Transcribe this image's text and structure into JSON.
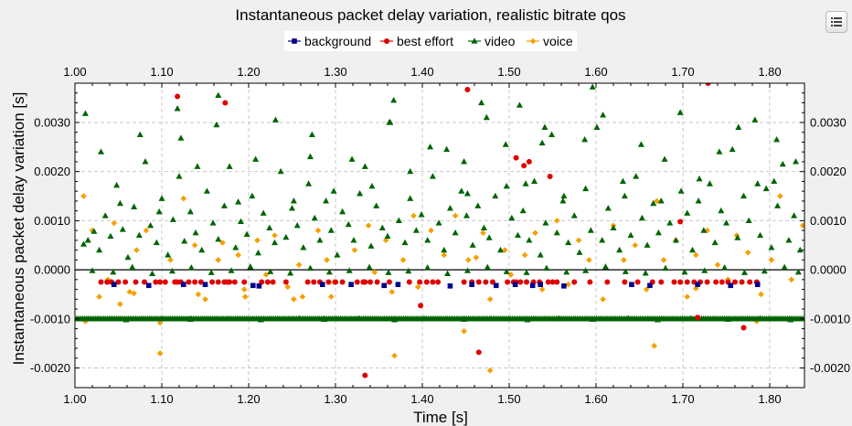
{
  "chart_data": {
    "type": "scatter",
    "title": "Instantaneous packet delay variation, realistic bitrate qos",
    "xlabel": "Time [s]",
    "ylabel": "Instantaneous packet delay variation [s]",
    "xlim": [
      1.0,
      1.84
    ],
    "ylim": [
      -0.0024,
      0.0038
    ],
    "x_ticks": [
      "1.00",
      "1.10",
      "1.20",
      "1.30",
      "1.40",
      "1.50",
      "1.60",
      "1.70",
      "1.80"
    ],
    "y_ticks_left": [
      "0.0030",
      "0.0020",
      "0.0010",
      "0.0000",
      "-0.0010",
      "-0.0020"
    ],
    "y_ticks_right": [
      "0.0030",
      "0.0020",
      "0.0010",
      "0.0000",
      "-0.0010",
      "-0.0020"
    ],
    "grid": true,
    "zero_line": true,
    "legend_position": "top-center",
    "series": [
      {
        "name": "background",
        "marker": "square",
        "color": "#00008b",
        "x": [
          1.045,
          1.085,
          1.125,
          1.15,
          1.205,
          1.212,
          1.285,
          1.318,
          1.356,
          1.372,
          1.432,
          1.457,
          1.485,
          1.507,
          1.527,
          1.536,
          1.563,
          1.641,
          1.662,
          1.717,
          1.755,
          1.786
        ],
        "y": [
          -0.0003,
          -0.00032,
          -0.0003,
          -0.0003,
          -0.00032,
          -0.00033,
          -0.0003,
          -0.0003,
          -0.00032,
          -0.0003,
          -0.00033,
          -0.0003,
          -0.00032,
          -0.0003,
          -0.00032,
          -0.0003,
          -0.00033,
          -0.0003,
          -0.00032,
          -0.0003,
          -0.00032,
          -0.0003
        ]
      },
      {
        "name": "best effort",
        "marker": "circle",
        "color": "#e00000",
        "x": [
          1.03,
          1.037,
          1.042,
          1.05,
          1.058,
          1.07,
          1.08,
          1.093,
          1.098,
          1.104,
          1.115,
          1.118,
          1.122,
          1.131,
          1.138,
          1.145,
          1.158,
          1.165,
          1.172,
          1.175,
          1.178,
          1.184,
          1.195,
          1.215,
          1.222,
          1.228,
          1.243,
          1.268,
          1.275,
          1.282,
          1.292,
          1.3,
          1.308,
          1.325,
          1.332,
          1.334,
          1.34,
          1.348,
          1.362,
          1.385,
          1.397,
          1.405,
          1.412,
          1.418,
          1.448,
          1.457,
          1.465,
          1.473,
          1.481,
          1.498,
          1.505,
          1.508,
          1.513,
          1.52,
          1.528,
          1.535,
          1.545,
          1.55,
          1.555,
          1.575,
          1.593,
          1.613,
          1.633,
          1.648,
          1.665,
          1.675,
          1.69,
          1.697,
          1.705,
          1.713,
          1.72,
          1.728,
          1.738,
          1.745,
          1.752,
          1.76,
          1.768,
          1.777,
          1.785,
          1.452,
          1.118,
          1.173,
          1.508,
          1.517,
          1.547,
          1.697,
          1.729,
          1.334,
          1.465,
          1.398,
          1.717,
          1.77,
          1.523
        ],
        "y": [
          -0.00025,
          -0.00025,
          -0.00025,
          -0.00025,
          -0.00025,
          -0.00025,
          -0.00025,
          -0.00025,
          -0.00025,
          -0.00025,
          -0.00025,
          -0.00025,
          -0.00025,
          -0.00025,
          -0.00025,
          -0.00025,
          -0.00025,
          -0.00025,
          -0.00025,
          -0.00025,
          -0.00025,
          -0.00025,
          -0.00025,
          -0.00025,
          -0.00025,
          -0.00025,
          -0.00025,
          -0.00025,
          -0.00025,
          -0.00025,
          -0.00025,
          -0.00025,
          -0.00025,
          -0.00025,
          -0.00025,
          -0.00025,
          -0.00025,
          -0.00025,
          -0.00025,
          -0.00025,
          -0.00025,
          -0.00025,
          -0.00025,
          -0.00025,
          -0.00025,
          -0.00025,
          -0.00025,
          -0.00025,
          -0.00025,
          -0.00025,
          -0.00025,
          -0.00025,
          -0.00025,
          -0.00025,
          -0.00025,
          -0.00025,
          -0.00025,
          -0.00025,
          -0.00025,
          -0.00025,
          -0.00025,
          -0.00025,
          -0.00025,
          -0.00025,
          -0.00025,
          -0.00025,
          -0.00025,
          -0.00025,
          -0.00025,
          -0.00025,
          -0.00025,
          -0.00025,
          -0.00025,
          -0.00025,
          -0.00025,
          -0.00025,
          -0.00025,
          -0.00025,
          -0.00025,
          0.00367,
          0.00353,
          0.0034,
          0.00228,
          0.00212,
          0.0019,
          0.00098,
          0.0038,
          -0.00215,
          -0.00168,
          -0.00073,
          -0.00097,
          -0.00118,
          0.0022
        ]
      },
      {
        "name": "video",
        "marker": "triangle",
        "color": "#006400",
        "x": [
          1.01,
          1.015,
          1.022,
          1.028,
          1.035,
          1.041,
          1.048,
          1.055,
          1.061,
          1.068,
          1.074,
          1.081,
          1.087,
          1.094,
          1.1,
          1.107,
          1.113,
          1.12,
          1.126,
          1.133,
          1.139,
          1.146,
          1.152,
          1.159,
          1.165,
          1.172,
          1.178,
          1.185,
          1.191,
          1.198,
          1.204,
          1.211,
          1.217,
          1.224,
          1.23,
          1.237,
          1.243,
          1.25,
          1.256,
          1.263,
          1.269,
          1.276,
          1.282,
          1.289,
          1.295,
          1.302,
          1.308,
          1.315,
          1.321,
          1.328,
          1.334,
          1.341,
          1.347,
          1.354,
          1.36,
          1.367,
          1.373,
          1.38,
          1.386,
          1.393,
          1.399,
          1.406,
          1.412,
          1.419,
          1.425,
          1.432,
          1.438,
          1.445,
          1.451,
          1.458,
          1.464,
          1.471,
          1.477,
          1.484,
          1.49,
          1.497,
          1.503,
          1.51,
          1.516,
          1.523,
          1.529,
          1.536,
          1.542,
          1.549,
          1.555,
          1.562,
          1.568,
          1.575,
          1.581,
          1.588,
          1.594,
          1.601,
          1.607,
          1.614,
          1.62,
          1.627,
          1.633,
          1.64,
          1.646,
          1.653,
          1.659,
          1.666,
          1.672,
          1.679,
          1.685,
          1.692,
          1.698,
          1.705,
          1.711,
          1.718,
          1.724,
          1.731,
          1.737,
          1.744,
          1.75,
          1.757,
          1.763,
          1.77,
          1.776,
          1.783,
          1.789,
          1.796,
          1.802,
          1.809,
          1.815,
          1.822,
          1.828,
          1.835,
          1.012,
          1.03,
          1.052,
          1.075,
          1.097,
          1.118,
          1.141,
          1.163,
          1.188,
          1.208,
          1.231,
          1.252,
          1.273,
          1.298,
          1.319,
          1.342,
          1.363,
          1.386,
          1.409,
          1.428,
          1.452,
          1.474,
          1.496,
          1.519,
          1.541,
          1.563,
          1.587,
          1.608,
          1.631,
          1.652,
          1.675,
          1.697,
          1.719,
          1.742,
          1.764,
          1.786,
          1.808,
          1.83,
          1.02,
          1.044,
          1.066,
          1.089,
          1.112,
          1.134,
          1.157,
          1.18,
          1.202,
          1.225,
          1.248,
          1.271,
          1.293,
          1.316,
          1.339,
          1.361,
          1.384,
          1.406,
          1.429,
          1.452,
          1.475,
          1.497,
          1.52,
          1.543,
          1.566,
          1.588,
          1.611,
          1.634,
          1.657,
          1.68,
          1.702,
          1.725,
          1.748,
          1.771,
          1.794,
          1.817,
          1.833,
          1.026,
          1.059,
          1.101,
          1.133,
          1.176,
          1.214,
          1.258,
          1.287,
          1.327,
          1.368,
          1.402,
          1.448,
          1.479,
          1.521,
          1.558,
          1.596,
          1.637,
          1.671,
          1.709,
          1.752,
          1.789,
          1.824,
          1.596,
          1.512,
          1.362,
          1.468,
          1.122,
          1.805,
          1.538,
          1.448,
          1.271,
          1.165
        ],
        "y": [
          0.00052,
          0.0006,
          0.00078,
          0.0004,
          0.0011,
          0.00068,
          0.00172,
          0.00082,
          0.00025,
          0.00128,
          0.0007,
          0.0022,
          0.0009,
          0.00055,
          0.00145,
          0.0003,
          0.00102,
          0.0019,
          0.00058,
          0.00118,
          0.00075,
          0.0004,
          0.0016,
          0.00095,
          0.00062,
          0.0013,
          0.0021,
          0.00045,
          0.00098,
          0.00072,
          0.0015,
          0.00034,
          0.00115,
          0.00085,
          0.00055,
          0.002,
          0.00066,
          0.00125,
          0.0009,
          0.00045,
          0.00175,
          0.00105,
          0.0006,
          0.0014,
          0.0008,
          0.0003,
          0.00118,
          0.00092,
          0.0006,
          0.00155,
          0.0021,
          0.00048,
          0.0013,
          0.00085,
          0.00068,
          0.00345,
          0.001,
          0.00055,
          0.00145,
          0.0008,
          0.00112,
          0.0006,
          0.0019,
          0.00095,
          0.0004,
          0.00125,
          0.00075,
          0.0016,
          0.0011,
          0.0005,
          0.0013,
          0.00085,
          0.00065,
          0.0015,
          0.0004,
          0.0017,
          0.00105,
          0.0007,
          0.0012,
          0.0006,
          0.0018,
          0.0003,
          0.00095,
          0.00275,
          0.00075,
          0.0014,
          0.00055,
          0.0011,
          0.00035,
          0.00165,
          0.0008,
          0.0029,
          0.0006,
          0.00125,
          0.00085,
          0.0004,
          0.0015,
          0.0007,
          0.0019,
          0.00105,
          0.0005,
          0.00135,
          0.00075,
          0.00225,
          0.00095,
          0.0006,
          0.0016,
          0.00115,
          0.0004,
          0.0014,
          0.0008,
          0.00175,
          0.00055,
          0.0012,
          0.00095,
          0.00245,
          0.00065,
          0.0015,
          0.001,
          0.00305,
          0.0007,
          0.00165,
          0.00045,
          0.0013,
          0.00215,
          0.0006,
          0.0011,
          0.0004,
          0.00318,
          0.0024,
          0.00135,
          0.00275,
          0.00118,
          0.00328,
          0.0021,
          0.00295,
          0.00138,
          0.00225,
          0.00305,
          0.0014,
          0.00275,
          0.0016,
          0.00225,
          0.0017,
          0.003,
          0.002,
          0.0025,
          0.00245,
          0.00155,
          0.0031,
          0.00255,
          0.00175,
          0.0029,
          0.0015,
          0.00265,
          0.00315,
          0.0018,
          0.00255,
          0.0014,
          0.0032,
          0.00185,
          0.0024,
          0.0029,
          0.00175,
          0.00265,
          0.0022,
          -2e-05,
          -5e-05,
          5e-05,
          -8e-05,
          -3e-05,
          4e-05,
          -6e-05,
          -2e-05,
          6e-05,
          -4e-05,
          -7e-05,
          3e-05,
          -5e-05,
          -2e-05,
          5e-05,
          -6e-05,
          -3e-05,
          4e-05,
          -8e-05,
          -2e-05,
          5e-05,
          -4e-05,
          -6e-05,
          3e-05,
          -5e-05,
          -2e-05,
          6e-05,
          -4e-05,
          -7e-05,
          3e-05,
          -5e-05,
          -2e-05,
          4e-05,
          -6e-05,
          -3e-05,
          5e-05,
          -5e-05,
          -0.001,
          -0.00102,
          -0.001,
          -0.00101,
          -0.001,
          -0.00102,
          -0.001,
          -0.00101,
          -0.001,
          -0.00102,
          -0.001,
          -0.00101,
          -0.001,
          -0.00102,
          -0.001,
          -0.00101,
          -0.001,
          -0.00102,
          -0.001,
          -0.00101,
          -0.001,
          -0.00102,
          0.00372,
          0.00335,
          0.003,
          0.0034,
          0.00268,
          0.0018,
          0.00258,
          0.0022,
          0.0023,
          0.00355
        ]
      },
      {
        "name": "voice",
        "marker": "diamond",
        "color": "#f5a000",
        "x": [
          1.01,
          1.02,
          1.028,
          1.038,
          1.045,
          1.052,
          1.063,
          1.071,
          1.082,
          1.098,
          1.11,
          1.125,
          1.138,
          1.15,
          1.165,
          1.17,
          1.188,
          1.195,
          1.21,
          1.22,
          1.23,
          1.245,
          1.258,
          1.262,
          1.28,
          1.29,
          1.298,
          1.322,
          1.338,
          1.345,
          1.358,
          1.365,
          1.378,
          1.39,
          1.395,
          1.41,
          1.425,
          1.438,
          1.453,
          1.462,
          1.47,
          1.478,
          1.495,
          1.502,
          1.518,
          1.53,
          1.538,
          1.555,
          1.568,
          1.58,
          1.592,
          1.608,
          1.62,
          1.632,
          1.645,
          1.658,
          1.67,
          1.678,
          1.692,
          1.705,
          1.715,
          1.728,
          1.74,
          1.752,
          1.762,
          1.775,
          1.79,
          1.802,
          1.812,
          1.825,
          1.838,
          1.012,
          1.068,
          1.098,
          1.142,
          1.196,
          1.252,
          1.295,
          1.368,
          1.448,
          1.478,
          1.555,
          1.667,
          1.715,
          1.785
        ],
        "y": [
          0.0015,
          0.0008,
          -0.00055,
          -0.0002,
          0.00095,
          -0.0007,
          -0.00045,
          0.0004,
          0.0008,
          -0.0017,
          0.0002,
          0.00145,
          0.0005,
          -0.0006,
          0.0002,
          0.00055,
          0.0003,
          -0.0004,
          0.0006,
          -0.0001,
          0.0007,
          -0.00035,
          0.0001,
          -0.00055,
          0.0008,
          0.0002,
          -0.00025,
          0.0004,
          0.0009,
          -5e-05,
          0.0006,
          -0.00045,
          0.0002,
          0.0011,
          -0.00035,
          0.0008,
          0.0003,
          0.0011,
          0.0002,
          0.00025,
          0.00075,
          -0.0006,
          0.0004,
          -0.0001,
          0.0003,
          0.00075,
          -0.0004,
          0.001,
          -0.0003,
          0.0006,
          0.0002,
          -0.0006,
          0.0009,
          0.0002,
          0.0005,
          -0.0004,
          0.0014,
          0.0002,
          0.0006,
          -0.00055,
          0.0003,
          0.0008,
          0.0001,
          -0.0002,
          0.0007,
          0.00035,
          -0.0005,
          0.0002,
          0.0015,
          -0.0002,
          0.0009,
          -0.00105,
          -0.00048,
          -0.00108,
          -0.0005,
          -0.00055,
          -0.0006,
          -0.00055,
          -0.00175,
          -0.00125,
          -0.00205,
          -0.001,
          -0.00155,
          -0.00038,
          -0.00105
        ]
      }
    ]
  },
  "menu_icon": "hamburger-list-icon"
}
